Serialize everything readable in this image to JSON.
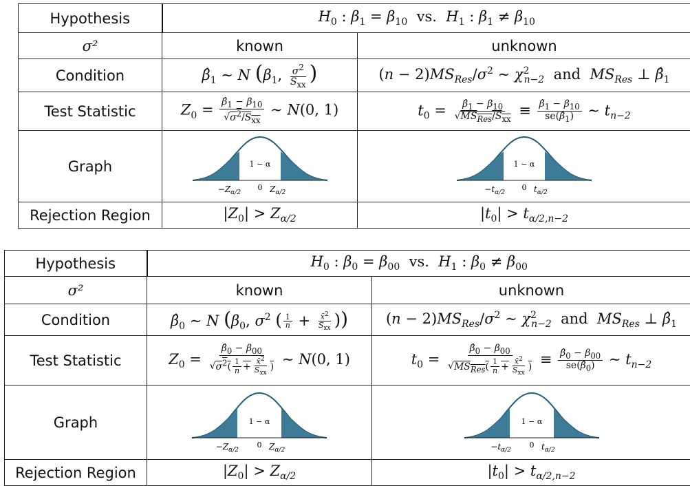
{
  "labels": {
    "hypothesis": "Hypothesis",
    "sigma2": "σ²",
    "condition": "Condition",
    "test_statistic": "Test Statistic",
    "graph": "Graph",
    "rejection_region": "Rejection Region",
    "known": "known",
    "unknown": "unknown"
  },
  "tables": [
    {
      "hypothesis": "H₀ : β₁ = β₁₀ vs. H₁ : β₁ ≠ β₁₀",
      "condition_known": "β̂₁ ∼ N(β₁, σ²/Sₓₓ)",
      "condition_unknown": "(n − 2)MS_Res/σ² ∼ χ²ₙ₋₂ and MS_Res ⊥ β̂₁",
      "test_stat_known": "Z₀ = (β̂₁ − β₁₀)/√(σ²/Sₓₓ) ∼ N(0, 1)",
      "test_stat_unknown": "t₀ = (β̂₁ − β₁₀)/√(MS_Res/Sₓₓ) ≡ (β̂₁ − β₁₀)/se(β̂₁) ∼ tₙ₋₂",
      "graph_known": {
        "center_label": "1 − α",
        "ticks": [
          "−Z",
          "0",
          "Z"
        ],
        "tick_sub": "α/2"
      },
      "graph_unknown": {
        "center_label": "1 − α",
        "ticks": [
          "−t",
          "0",
          "t"
        ],
        "tick_sub": "α/2"
      },
      "reject_known": "|Z₀| > Z_α/2",
      "reject_unknown": "|t₀| > t_α/2,n−2"
    },
    {
      "hypothesis": "H₀ : β₀ = β₀₀ vs. H₁ : β₀ ≠ β₀₀",
      "condition_known": "β̂₀ ∼ N(β₀, σ²(1/n + x̄²/Sₓₓ))",
      "condition_unknown": "(n − 2)MS_Res/σ² ∼ χ²ₙ₋₂ and MS_Res ⊥ β̂₁",
      "test_stat_known": "Z₀ = (β̂₀ − β₀₀)/√(σ²(1/n + x̄²/Sₓₓ)) ∼ N(0, 1)",
      "test_stat_unknown": "t₀ = (β̂₀ − β₀₀)/√(MS_Res(1/n + x̄²/Sₓₓ)) ≡ (β̂₀ − β₀₀)/se(β̂₀) ∼ tₙ₋₂",
      "graph_known": {
        "center_label": "1 − α",
        "ticks": [
          "−Z",
          "0",
          "Z"
        ],
        "tick_sub": "α/2"
      },
      "graph_unknown": {
        "center_label": "1 − α",
        "ticks": [
          "−t",
          "0",
          "t"
        ],
        "tick_sub": "α/2"
      },
      "reject_known": "|Z₀| > Z_α/2",
      "reject_unknown": "|t₀| > t_α/2,n−2"
    }
  ],
  "colors": {
    "tail_fill": "#3d7b96",
    "curve_stroke": "#1f5d78",
    "border": "#222222"
  }
}
